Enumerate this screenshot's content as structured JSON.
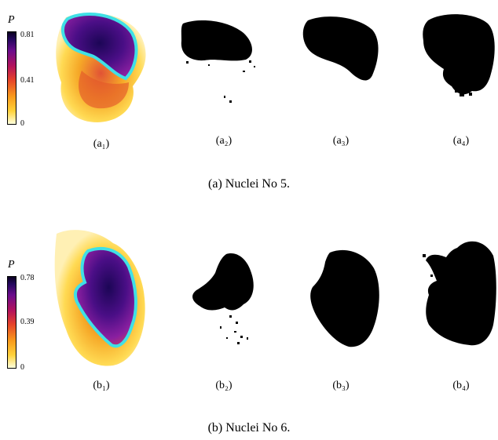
{
  "rows": [
    {
      "colorbar": {
        "symbol": "P",
        "max": "0.81",
        "mid": "0.41",
        "min": "0"
      },
      "labels": [
        "(a₁)",
        "(a₂)",
        "(a₃)",
        "(a₄)"
      ],
      "caption": "(a) Nuclei No 5."
    },
    {
      "colorbar": {
        "symbol": "P",
        "max": "0.78",
        "mid": "0.39",
        "min": "0"
      },
      "labels": [
        "(b₁)",
        "(b₂)",
        "(b₃)",
        "(b₄)"
      ],
      "caption": "(b) Nuclei No 6."
    }
  ],
  "colors": {
    "contour": "#3fe0e6",
    "mask": "#000000"
  }
}
